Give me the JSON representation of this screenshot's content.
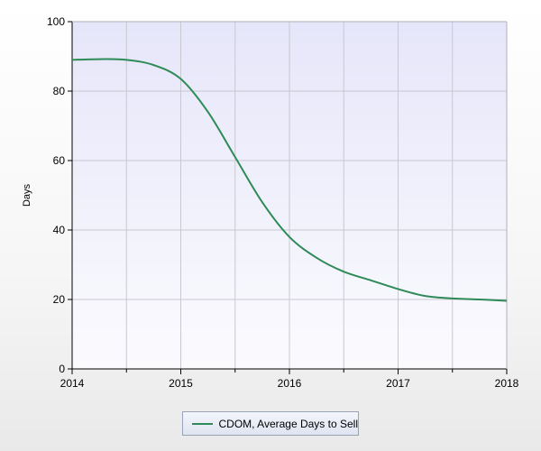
{
  "chart_data": {
    "type": "line",
    "title": "",
    "xlabel": "",
    "ylabel": "Days",
    "xlim": [
      2014,
      2018
    ],
    "ylim": [
      0,
      100
    ],
    "x_ticks": [
      2014,
      2015,
      2016,
      2017,
      2018
    ],
    "y_ticks": [
      0,
      20,
      40,
      60,
      80,
      100
    ],
    "grid": true,
    "legend_position": "bottom-center",
    "series": [
      {
        "name": "CDOM, Average Days to Sell",
        "color": "#2e8b57",
        "x": [
          2014.0,
          2014.25,
          2014.5,
          2014.75,
          2015.0,
          2015.25,
          2015.5,
          2015.75,
          2016.0,
          2016.25,
          2016.5,
          2016.75,
          2017.0,
          2017.25,
          2017.5,
          2017.75,
          2018.0
        ],
        "y": [
          89,
          89.2,
          89,
          87.5,
          83.5,
          74,
          61,
          48,
          38,
          32,
          28,
          25.5,
          23,
          21,
          20.3,
          20,
          19.6
        ]
      }
    ]
  },
  "legend": {
    "label": "CDOM, Average Days to Sell"
  }
}
